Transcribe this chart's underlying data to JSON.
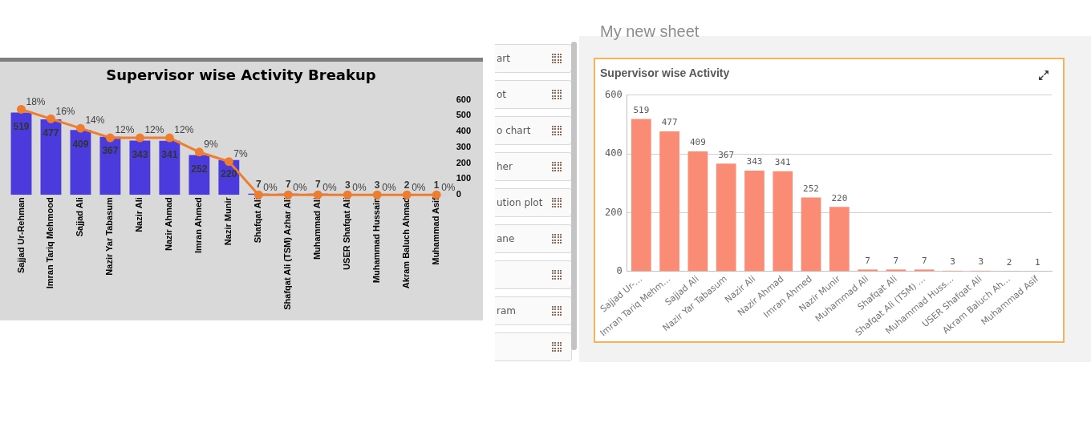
{
  "chart_data": [
    {
      "type": "bar",
      "title": "Supervisor wise Activity Breakup",
      "categories": [
        "Sajjad Ur-Rehman",
        "Imran Tariq Mehmood",
        "Sajjad Ali",
        "Nazir Yar Tabasum",
        "Nazir Ali",
        "Nazir Ahmad",
        "Imran Ahmed",
        "Nazir Munir",
        "Shafqat Ali",
        "Shafqat Ali (TSM) Azhar Ali",
        "Muhammad Ali",
        "USER Shafqat Ali",
        "Muhammad Hussain",
        "Akram Baluch Ahmad",
        "Muhammad Asif"
      ],
      "series": [
        {
          "type": "bar",
          "color": "#4b3bdc",
          "values": [
            519,
            477,
            409,
            367,
            343,
            341,
            252,
            220,
            7,
            7,
            7,
            3,
            3,
            2,
            1
          ]
        },
        {
          "type": "line",
          "axis": "y2",
          "color": "#ed7d31",
          "values": [
            18,
            16,
            14,
            12,
            12,
            12,
            9,
            7,
            0,
            0,
            0,
            0,
            0,
            0,
            0
          ],
          "value_labels": [
            "18%",
            "16%",
            "14%",
            "12%",
            "12%",
            "12%",
            "9%",
            "7%",
            "0%",
            "0%",
            "0%",
            "0%",
            "0%",
            "0%",
            "0%"
          ]
        }
      ],
      "ylim": [
        0,
        600
      ],
      "yticks": [
        0,
        100,
        200,
        300,
        400,
        500,
        600
      ],
      "data_labels": true,
      "marker": "circle",
      "grid": false,
      "legend": false
    },
    {
      "type": "bar",
      "title": "Supervisor wise Activity",
      "categories": [
        "Sajjad Ur-…",
        "Imran Tariq Mehm…",
        "Sajjad Ali",
        "Nazir Yar Tabasum",
        "Nazir Ali",
        "Nazir Ahmad",
        "Imran Ahmed",
        "Nazir Munir",
        "Muhammad Ali",
        "Shafqat Ali",
        "Shafqat Ali (TSM) …",
        "Muhammad Huss…",
        "USER Shafqat Ali",
        "Akram Baluch Ah…",
        "Muhammad Asif"
      ],
      "values": [
        519,
        477,
        409,
        367,
        343,
        341,
        252,
        220,
        7,
        7,
        7,
        3,
        3,
        2,
        1
      ],
      "color": "#fa8c75",
      "ylim": [
        0,
        600
      ],
      "yticks": [
        0,
        200,
        400,
        600
      ],
      "data_labels": true,
      "grid": "y",
      "legend": false
    },
    {
      "type": "other",
      "title": "My new sheet",
      "annotations": [
        "art",
        "ot",
        "o chart",
        "her",
        "ution plot",
        "ane",
        "ram"
      ]
    }
  ]
}
